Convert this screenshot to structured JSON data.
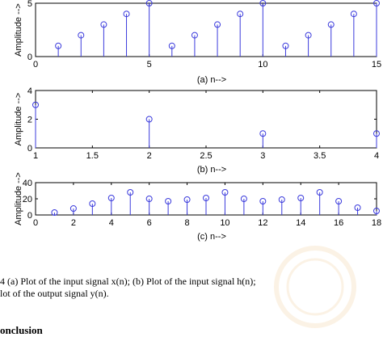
{
  "colors": {
    "stem": "#3b3bdc",
    "axis": "#000000",
    "watermark": "#e59a2f"
  },
  "chart_data": [
    {
      "type": "stem",
      "x": [
        1,
        2,
        3,
        4,
        5,
        6,
        7,
        8,
        9,
        10,
        11,
        12,
        13,
        14,
        15
      ],
      "y": [
        1,
        2,
        3,
        4,
        5,
        1,
        2,
        3,
        4,
        5,
        1,
        2,
        3,
        4,
        5
      ],
      "xlim": [
        0,
        15
      ],
      "ylim": [
        0,
        5
      ],
      "xticks": [
        "0",
        "5",
        "10",
        "15"
      ],
      "xtick_values": [
        0,
        5,
        10,
        15
      ],
      "yticks": [
        "0",
        "5"
      ],
      "ytick_values": [
        0,
        5
      ],
      "ylabel": "Amplitude -->",
      "sublabel": "(a)    n-->"
    },
    {
      "type": "stem",
      "x": [
        1,
        2,
        3,
        4
      ],
      "y": [
        3,
        2,
        1,
        1
      ],
      "xlim": [
        1,
        4
      ],
      "ylim": [
        0,
        4
      ],
      "xticks": [
        "1",
        "1.5",
        "2",
        "2.5",
        "3",
        "3.5",
        "4"
      ],
      "xtick_values": [
        1,
        1.5,
        2,
        2.5,
        3,
        3.5,
        4
      ],
      "yticks": [
        "0",
        "2",
        "4"
      ],
      "ytick_values": [
        0,
        2,
        4
      ],
      "ylabel": "Amplitude -->",
      "sublabel": "(b)    n-->"
    },
    {
      "type": "stem",
      "x": [
        1,
        2,
        3,
        4,
        5,
        6,
        7,
        8,
        9,
        10,
        11,
        12,
        13,
        14,
        15,
        16,
        17,
        18
      ],
      "y": [
        3,
        8,
        14,
        21,
        28,
        20,
        17,
        19,
        21,
        28,
        20,
        17,
        19,
        21,
        28,
        17,
        9,
        5
      ],
      "xlim": [
        0,
        18
      ],
      "ylim": [
        0,
        40
      ],
      "xticks": [
        "0",
        "2",
        "4",
        "6",
        "8",
        "10",
        "12",
        "14",
        "16",
        "18"
      ],
      "xtick_values": [
        0,
        2,
        4,
        6,
        8,
        10,
        12,
        14,
        16,
        18
      ],
      "yticks": [
        "0",
        "20",
        "40"
      ],
      "ytick_values": [
        0,
        20,
        40
      ],
      "ylabel": "Amplitude -->",
      "sublabel": "(c)    n-->"
    }
  ],
  "caption": {
    "line1": "4 (a) Plot of the input signal x(n); (b) Plot of the input signal h(n);",
    "line2": "lot of the output signal y(n)."
  },
  "section_heading": "onclusion"
}
